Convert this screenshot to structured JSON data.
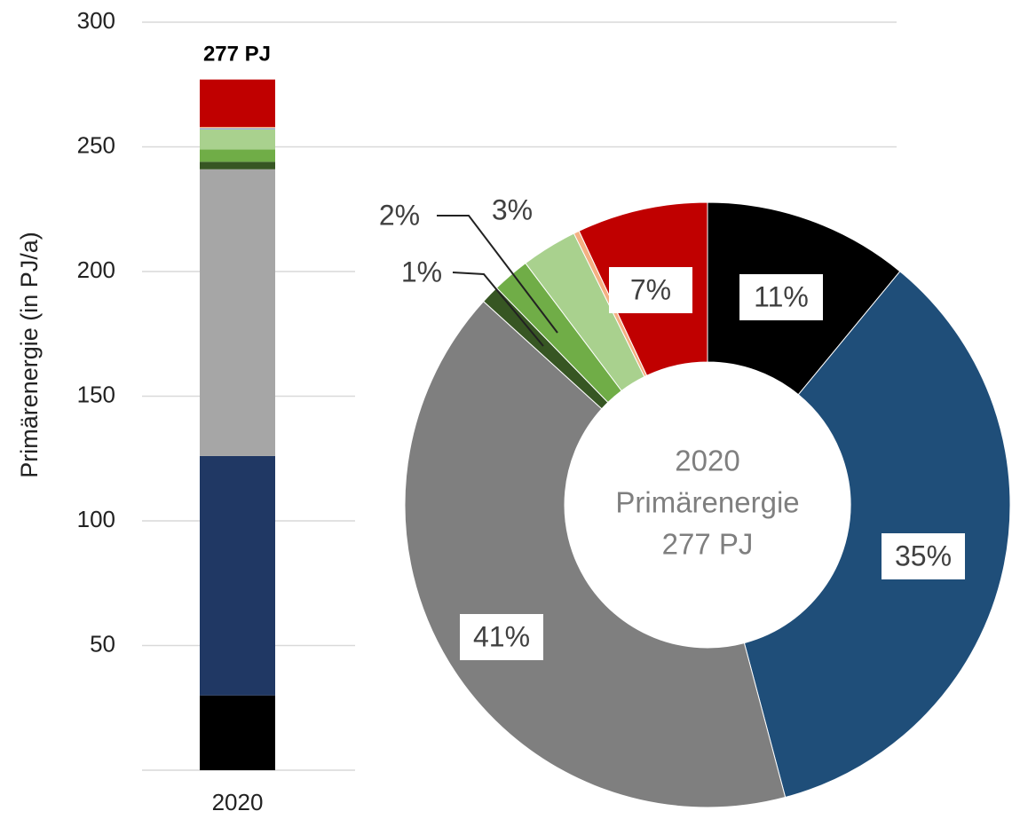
{
  "chart_data": [
    {
      "type": "bar",
      "stacked": true,
      "y_label": "Primärenergie (in PJ/a)",
      "total_label": "277 PJ",
      "categories": [
        "2020"
      ],
      "series": [
        {
          "color": "#000000",
          "values": [
            30
          ]
        },
        {
          "color": "#203864",
          "values": [
            96
          ]
        },
        {
          "color": "#a6a6a6",
          "values": [
            115
          ]
        },
        {
          "color": "#375623",
          "values": [
            3
          ]
        },
        {
          "color": "#70ad47",
          "values": [
            5
          ]
        },
        {
          "color": "#a9d18e",
          "values": [
            8
          ]
        },
        {
          "color": "#8eaadb",
          "values": [
            0.5
          ]
        },
        {
          "color": "#f4b183",
          "values": [
            0.5
          ]
        },
        {
          "color": "#c00000",
          "values": [
            19
          ]
        }
      ],
      "ylim": [
        0,
        300
      ],
      "yticks": [
        50,
        100,
        150,
        200,
        250,
        300
      ],
      "grid": true
    },
    {
      "type": "donut",
      "center_text": [
        "2020",
        "Primärenergie",
        "277 PJ"
      ],
      "values": [
        11,
        35,
        41,
        1,
        2,
        3,
        0.3,
        7
      ],
      "value_labels": [
        "11%",
        "35%",
        "41%",
        "1%",
        "2%",
        "3%",
        null,
        "7%"
      ],
      "colors": [
        "#000000",
        "#1f4e79",
        "#7f7f7f",
        "#375623",
        "#70ad47",
        "#a9d18e",
        "#f4b183",
        "#c00000"
      ]
    }
  ]
}
